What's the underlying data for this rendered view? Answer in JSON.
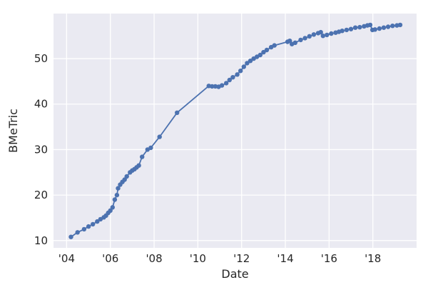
{
  "colors": {
    "figure_background": "#ffffff",
    "axes_background": "#eaeaf2",
    "gridline": "#ffffff",
    "series_line": "#4c72b0",
    "text": "#262626"
  },
  "chart_data": {
    "type": "line",
    "title": "",
    "xlabel": "Date",
    "ylabel": "BMeTric",
    "grid": true,
    "legend_visible": false,
    "xlim": [
      2003.4,
      2020.0
    ],
    "ylim": [
      8.4,
      59.9
    ],
    "x_ticks": [
      2004,
      2006,
      2008,
      2010,
      2012,
      2014,
      2016,
      2018
    ],
    "x_tick_labels": [
      "'04",
      "'06",
      "'08",
      "'10",
      "'12",
      "'14",
      "'16",
      "'18"
    ],
    "y_ticks": [
      10,
      20,
      30,
      40,
      50
    ],
    "y_tick_labels": [
      "10",
      "20",
      "30",
      "40",
      "50"
    ],
    "series": [
      {
        "name": "BMeTric",
        "color": "#4c72b0",
        "marker": "circle",
        "marker_radius": 3.2,
        "line_width": 1.8,
        "points": [
          [
            2004.2,
            10.8
          ],
          [
            2004.5,
            11.8
          ],
          [
            2004.8,
            12.5
          ],
          [
            2005.0,
            13.1
          ],
          [
            2005.2,
            13.6
          ],
          [
            2005.4,
            14.2
          ],
          [
            2005.55,
            14.7
          ],
          [
            2005.7,
            15.1
          ],
          [
            2005.8,
            15.5
          ],
          [
            2005.9,
            16.1
          ],
          [
            2006.0,
            16.6
          ],
          [
            2006.1,
            17.3
          ],
          [
            2006.2,
            19.0
          ],
          [
            2006.3,
            20.0
          ],
          [
            2006.35,
            21.5
          ],
          [
            2006.45,
            22.3
          ],
          [
            2006.55,
            22.9
          ],
          [
            2006.65,
            23.4
          ],
          [
            2006.75,
            24.1
          ],
          [
            2006.9,
            25.0
          ],
          [
            2007.0,
            25.4
          ],
          [
            2007.1,
            25.7
          ],
          [
            2007.2,
            26.1
          ],
          [
            2007.3,
            26.5
          ],
          [
            2007.45,
            28.4
          ],
          [
            2007.7,
            30.0
          ],
          [
            2007.85,
            30.4
          ],
          [
            2008.25,
            32.8
          ],
          [
            2009.05,
            38.1
          ],
          [
            2010.5,
            44.0
          ],
          [
            2010.65,
            43.9
          ],
          [
            2010.8,
            43.9
          ],
          [
            2010.95,
            43.8
          ],
          [
            2011.1,
            44.1
          ],
          [
            2011.3,
            44.6
          ],
          [
            2011.45,
            45.3
          ],
          [
            2011.6,
            45.9
          ],
          [
            2011.8,
            46.5
          ],
          [
            2011.95,
            47.3
          ],
          [
            2012.1,
            48.2
          ],
          [
            2012.25,
            49.0
          ],
          [
            2012.4,
            49.5
          ],
          [
            2012.55,
            50.0
          ],
          [
            2012.7,
            50.4
          ],
          [
            2012.85,
            50.8
          ],
          [
            2013.0,
            51.4
          ],
          [
            2013.15,
            51.9
          ],
          [
            2013.35,
            52.5
          ],
          [
            2013.5,
            52.9
          ],
          [
            2014.1,
            53.7
          ],
          [
            2014.2,
            53.9
          ],
          [
            2014.3,
            53.2
          ],
          [
            2014.45,
            53.5
          ],
          [
            2014.7,
            54.1
          ],
          [
            2014.9,
            54.5
          ],
          [
            2015.1,
            54.9
          ],
          [
            2015.3,
            55.3
          ],
          [
            2015.5,
            55.6
          ],
          [
            2015.62,
            55.8
          ],
          [
            2015.72,
            55.0
          ],
          [
            2015.9,
            55.2
          ],
          [
            2016.1,
            55.5
          ],
          [
            2016.3,
            55.7
          ],
          [
            2016.45,
            55.9
          ],
          [
            2016.6,
            56.1
          ],
          [
            2016.8,
            56.3
          ],
          [
            2017.0,
            56.5
          ],
          [
            2017.2,
            56.8
          ],
          [
            2017.4,
            56.9
          ],
          [
            2017.6,
            57.1
          ],
          [
            2017.75,
            57.3
          ],
          [
            2017.88,
            57.4
          ],
          [
            2017.98,
            56.3
          ],
          [
            2018.1,
            56.4
          ],
          [
            2018.3,
            56.6
          ],
          [
            2018.5,
            56.8
          ],
          [
            2018.7,
            57.0
          ],
          [
            2018.9,
            57.2
          ],
          [
            2019.1,
            57.3
          ],
          [
            2019.25,
            57.4
          ]
        ]
      }
    ]
  }
}
